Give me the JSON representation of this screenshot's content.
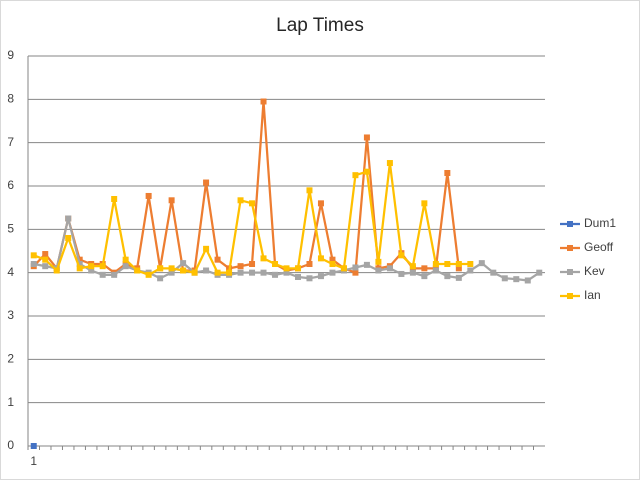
{
  "chart_data": {
    "type": "line",
    "title": "Lap Times",
    "categories": [
      "1",
      null,
      null,
      null,
      null,
      null,
      null,
      null,
      null,
      null,
      null,
      null,
      null,
      null,
      null,
      null,
      null,
      null,
      null,
      null,
      null,
      null,
      null,
      null,
      null,
      null,
      null,
      null,
      null,
      null,
      null,
      null,
      null,
      null,
      null,
      null,
      null,
      null,
      null,
      null,
      null,
      null,
      null,
      null,
      null
    ],
    "series": [
      {
        "name": "Dum1",
        "color": "#4472c4",
        "values": [
          0,
          null,
          null,
          null,
          null,
          null,
          null,
          null,
          null,
          null,
          null,
          null,
          null,
          null,
          null,
          null,
          null,
          null,
          null,
          null,
          null,
          null,
          null,
          null,
          null,
          null,
          null,
          null,
          null,
          null,
          null,
          null,
          null,
          null,
          null,
          null,
          null,
          null,
          null,
          null,
          null,
          null,
          null,
          null,
          null
        ]
      },
      {
        "name": "Geoff",
        "color": "#ed7d31",
        "values": [
          4.15,
          4.43,
          4.1,
          5.25,
          4.3,
          4.2,
          4.2,
          4.0,
          4.2,
          4.1,
          5.77,
          4.1,
          5.67,
          4.05,
          4.05,
          6.08,
          4.3,
          4.1,
          4.15,
          4.2,
          7.95,
          4.2,
          4.05,
          4.1,
          4.2,
          5.6,
          4.3,
          4.1,
          4.0,
          7.12,
          4.1,
          4.15,
          4.45,
          4.1,
          4.1,
          4.1,
          6.3,
          4.1,
          null,
          null,
          null,
          null,
          null,
          null,
          null
        ]
      },
      {
        "name": "Kev",
        "color": "#a5a5a5",
        "values": [
          4.2,
          4.15,
          4.1,
          5.25,
          4.2,
          4.05,
          3.95,
          3.95,
          4.15,
          4.05,
          4.0,
          3.87,
          4.0,
          4.22,
          4.0,
          4.05,
          3.95,
          3.95,
          4.0,
          4.0,
          4.0,
          3.95,
          4.0,
          3.9,
          3.87,
          3.92,
          4.0,
          4.05,
          4.12,
          4.18,
          4.05,
          4.1,
          3.97,
          4.0,
          3.92,
          4.05,
          3.92,
          3.88,
          4.05,
          4.22,
          4.0,
          3.87,
          3.85,
          3.82,
          4.0
        ]
      },
      {
        "name": "Ian",
        "color": "#ffc000",
        "values": [
          4.4,
          4.3,
          4.05,
          4.8,
          4.1,
          4.15,
          4.15,
          5.7,
          4.3,
          4.05,
          3.95,
          4.1,
          4.1,
          4.05,
          4.0,
          4.55,
          4.0,
          4.0,
          5.67,
          5.6,
          4.33,
          4.2,
          4.1,
          4.1,
          5.9,
          4.33,
          4.2,
          4.1,
          6.25,
          6.33,
          4.25,
          6.53,
          4.4,
          4.15,
          5.6,
          4.2,
          4.2,
          4.2,
          4.2,
          null,
          null,
          null,
          null,
          null,
          null
        ]
      }
    ],
    "ylim": [
      0,
      9
    ],
    "yticks": [
      0,
      1,
      2,
      3,
      4,
      5,
      6,
      7,
      8,
      9
    ],
    "grid": true,
    "legend": "right"
  }
}
